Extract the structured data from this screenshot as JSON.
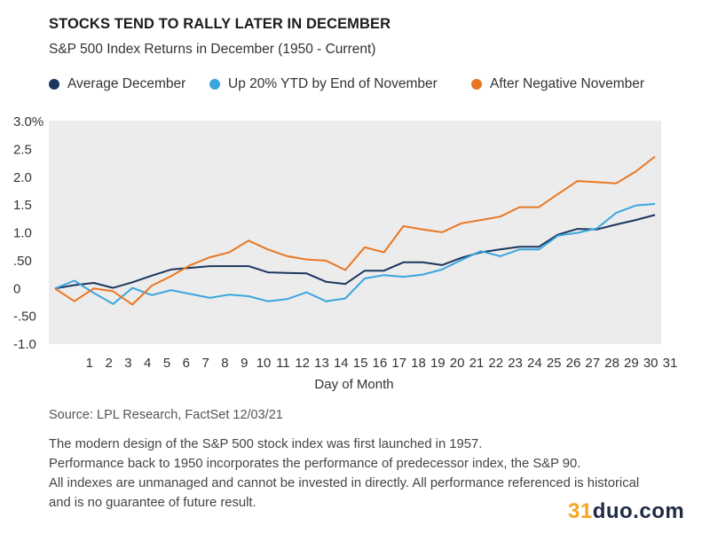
{
  "chart_data": {
    "type": "line",
    "title": "STOCKS TEND TO RALLY LATER IN DECEMBER",
    "subtitle": "S&P 500 Index Returns in December (1950 - Current)",
    "xlabel": "Day of Month",
    "ylabel": "",
    "x": [
      0,
      1,
      2,
      3,
      4,
      5,
      6,
      7,
      8,
      9,
      10,
      11,
      12,
      13,
      14,
      15,
      16,
      17,
      18,
      19,
      20,
      21,
      22,
      23,
      24,
      25,
      26,
      27,
      28,
      29,
      30,
      31
    ],
    "x_tick_labels": [
      "1",
      "2",
      "3",
      "4",
      "5",
      "6",
      "7",
      "8",
      "9",
      "10",
      "11",
      "12",
      "13",
      "14",
      "15",
      "16",
      "17",
      "18",
      "19",
      "20",
      "21",
      "22",
      "23",
      "24",
      "25",
      "26",
      "27",
      "28",
      "29",
      "30",
      "31"
    ],
    "ylim": [
      -1.0,
      3.0
    ],
    "y_ticks": [
      3.0,
      2.5,
      2.0,
      1.5,
      1.0,
      0.5,
      0,
      -0.5,
      -1.0
    ],
    "y_tick_labels": [
      "3.0%",
      "2.5",
      "2.0",
      "1.5",
      "1.0",
      ".50",
      "0",
      "-.50",
      "-1.0"
    ],
    "grid": false,
    "legend_position": "top",
    "series": [
      {
        "name": "Average December",
        "color": "#1b365d",
        "values": [
          0,
          0.06,
          0.1,
          0.01,
          0.11,
          0.23,
          0.34,
          0.37,
          0.4,
          0.4,
          0.4,
          0.29,
          0.28,
          0.27,
          0.12,
          0.08,
          0.32,
          0.32,
          0.47,
          0.47,
          0.42,
          0.55,
          0.65,
          0.7,
          0.75,
          0.75,
          0.97,
          1.07,
          1.06,
          1.15,
          1.23,
          1.32
        ]
      },
      {
        "name": "Up 20% YTD by End of November",
        "color": "#3aa6dd",
        "values": [
          0,
          0.14,
          -0.08,
          -0.28,
          0.01,
          -0.12,
          -0.03,
          -0.1,
          -0.17,
          -0.11,
          -0.14,
          -0.23,
          -0.19,
          -0.07,
          -0.23,
          -0.18,
          0.18,
          0.24,
          0.21,
          0.25,
          0.34,
          0.51,
          0.67,
          0.58,
          0.7,
          0.7,
          0.95,
          1.0,
          1.08,
          1.36,
          1.49,
          1.52
        ]
      },
      {
        "name": "After Negative November",
        "color": "#e87722",
        "values": [
          0,
          -0.23,
          0.0,
          -0.05,
          -0.29,
          0.05,
          0.22,
          0.42,
          0.56,
          0.65,
          0.86,
          0.7,
          0.58,
          0.52,
          0.5,
          0.33,
          0.74,
          0.65,
          1.12,
          1.06,
          1.01,
          1.17,
          1.23,
          1.29,
          1.46,
          1.46,
          1.7,
          1.93,
          1.91,
          1.89,
          2.1,
          2.37
        ]
      }
    ]
  },
  "legend": [
    {
      "label": "Average December",
      "color": "#1b365d"
    },
    {
      "label": "Up 20% YTD by End of November",
      "color": "#3aa6dd"
    },
    {
      "label": "After Negative November",
      "color": "#e87722"
    }
  ],
  "footer": {
    "source": "Source: LPL Research, FactSet  12/03/21",
    "notes": [
      "The modern design of the S&P 500 stock index was first launched in 1957.",
      "Performance back to 1950 incorporates the performance of predecessor index, the S&P 90.",
      "All indexes are unmanaged and cannot be invested in directly. All performance referenced is historical",
      "and is no guarantee of future result."
    ]
  },
  "watermark": {
    "number": "31",
    "text": "duo.com"
  }
}
